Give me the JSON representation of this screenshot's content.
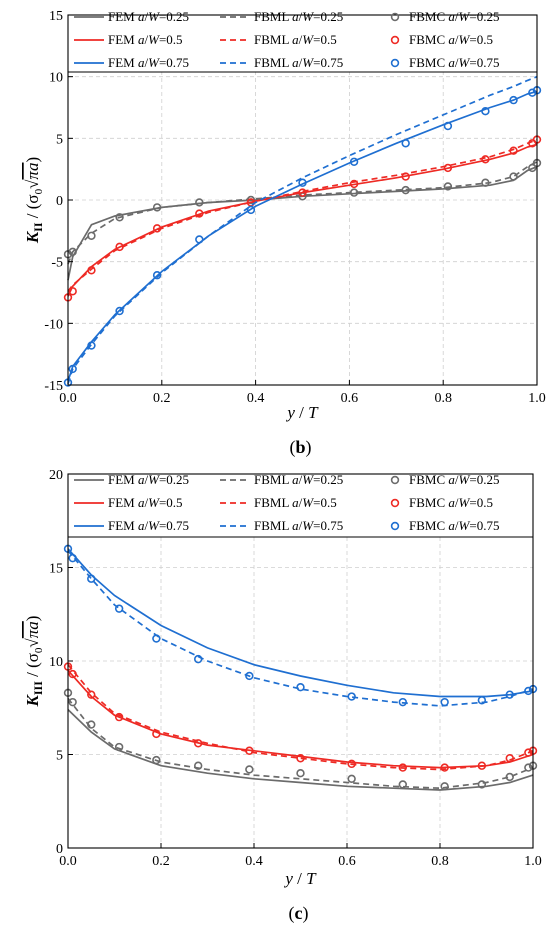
{
  "chart_data": [
    {
      "type": "line",
      "panel_label": "(b)",
      "xlabel": "y / T",
      "ylabel": "K_II / (σ0 √(πa))",
      "xlim": [
        0,
        1.0
      ],
      "ylim": [
        -15,
        15
      ],
      "xticks": [
        "0.0",
        "0.2",
        "0.4",
        "0.6",
        "0.8",
        "1.0"
      ],
      "yticks": [
        "-15",
        "-10",
        "-5",
        "0",
        "5",
        "10",
        "15"
      ],
      "grid": true,
      "legend_position": "top",
      "legend": [
        [
          "FEM a/W=0.25",
          "FBML a/W=0.25",
          "FBMC a/W=0.25"
        ],
        [
          "FEM a/W=0.5",
          "FBML a/W=0.5",
          "FBMC a/W=0.5"
        ],
        [
          "FEM a/W=0.75",
          "FBML a/W=0.75",
          "FBMC a/W=0.75"
        ]
      ],
      "series": [
        {
          "name": "FEM a/W=0.25",
          "style": "solid",
          "color": "#6b6b6b",
          "x": [
            0,
            0.01,
            0.05,
            0.1,
            0.2,
            0.3,
            0.4,
            0.5,
            0.6,
            0.7,
            0.8,
            0.9,
            0.95,
            0.98,
            1.0
          ],
          "y": [
            -6.5,
            -4.6,
            -2.0,
            -1.3,
            -0.6,
            -0.2,
            0.0,
            0.3,
            0.5,
            0.7,
            0.9,
            1.2,
            1.6,
            2.4,
            2.7
          ]
        },
        {
          "name": "FBML a/W=0.25",
          "style": "dashed",
          "color": "#6b6b6b",
          "x": [
            0,
            0.01,
            0.05,
            0.1,
            0.2,
            0.3,
            0.4,
            0.5,
            0.6,
            0.7,
            0.8,
            0.9,
            0.95,
            0.98,
            1.0
          ],
          "y": [
            -5.2,
            -4.2,
            -2.7,
            -1.5,
            -0.6,
            -0.2,
            0.1,
            0.4,
            0.6,
            0.8,
            1.0,
            1.4,
            1.9,
            2.7,
            3.1
          ]
        },
        {
          "name": "FBMC a/W=0.25",
          "style": "marker",
          "color": "#6b6b6b",
          "x": [
            0.0,
            0.01,
            0.05,
            0.11,
            0.19,
            0.28,
            0.39,
            0.5,
            0.61,
            0.72,
            0.81,
            0.89,
            0.95,
            0.99,
            1.0
          ],
          "y": [
            -4.4,
            -4.2,
            -2.9,
            -1.4,
            -0.6,
            -0.2,
            0.0,
            0.3,
            0.6,
            0.8,
            1.1,
            1.4,
            1.9,
            2.6,
            3.0
          ]
        },
        {
          "name": "FEM a/W=0.5",
          "style": "solid",
          "color": "#ee2a24",
          "x": [
            0,
            0.01,
            0.05,
            0.1,
            0.2,
            0.3,
            0.4,
            0.5,
            0.6,
            0.7,
            0.8,
            0.9,
            0.95,
            0.98,
            1.0
          ],
          "y": [
            -7.8,
            -7.0,
            -5.4,
            -4.0,
            -2.2,
            -0.9,
            -0.1,
            0.6,
            1.2,
            1.8,
            2.5,
            3.3,
            3.8,
            4.3,
            4.5
          ]
        },
        {
          "name": "FBML a/W=0.5",
          "style": "dashed",
          "color": "#ee2a24",
          "x": [
            0,
            0.01,
            0.05,
            0.1,
            0.2,
            0.3,
            0.4,
            0.5,
            0.6,
            0.7,
            0.8,
            0.9,
            0.95,
            0.98,
            1.0
          ],
          "y": [
            -7.4,
            -6.9,
            -5.6,
            -4.1,
            -2.3,
            -1.0,
            -0.1,
            0.7,
            1.4,
            2.0,
            2.7,
            3.5,
            4.1,
            4.6,
            4.9
          ]
        },
        {
          "name": "FBMC a/W=0.5",
          "style": "marker",
          "color": "#ee2a24",
          "x": [
            0.0,
            0.01,
            0.05,
            0.11,
            0.19,
            0.28,
            0.39,
            0.5,
            0.61,
            0.72,
            0.81,
            0.89,
            0.95,
            0.99,
            1.0
          ],
          "y": [
            -7.9,
            -7.4,
            -5.7,
            -3.8,
            -2.3,
            -1.1,
            -0.2,
            0.6,
            1.3,
            1.9,
            2.6,
            3.3,
            4.0,
            4.6,
            4.9
          ]
        },
        {
          "name": "FEM a/W=0.75",
          "style": "solid",
          "color": "#1f6fd1",
          "x": [
            0,
            0.01,
            0.05,
            0.1,
            0.2,
            0.3,
            0.4,
            0.5,
            0.6,
            0.7,
            0.8,
            0.9,
            0.95,
            0.98,
            1.0
          ],
          "y": [
            -14.7,
            -13.5,
            -11.5,
            -9.3,
            -5.8,
            -2.9,
            -0.5,
            1.3,
            3.0,
            4.6,
            6.1,
            7.5,
            8.1,
            8.6,
            8.8
          ]
        },
        {
          "name": "FBML a/W=0.75",
          "style": "dashed",
          "color": "#1f6fd1",
          "x": [
            0,
            0.01,
            0.05,
            0.1,
            0.2,
            0.3,
            0.4,
            0.5,
            0.6,
            0.7,
            0.8,
            0.9,
            0.95,
            0.98,
            1.0
          ],
          "y": [
            -14.9,
            -13.7,
            -11.7,
            -9.4,
            -5.9,
            -2.9,
            -0.2,
            1.8,
            3.6,
            5.3,
            6.9,
            8.5,
            9.2,
            9.7,
            10.0
          ]
        },
        {
          "name": "FBMC a/W=0.75",
          "style": "marker",
          "color": "#1f6fd1",
          "x": [
            0.0,
            0.01,
            0.05,
            0.11,
            0.19,
            0.28,
            0.39,
            0.5,
            0.61,
            0.72,
            0.81,
            0.89,
            0.95,
            0.99,
            1.0
          ],
          "y": [
            -14.8,
            -13.7,
            -11.8,
            -9.0,
            -6.1,
            -3.2,
            -0.8,
            1.4,
            3.1,
            4.6,
            6.0,
            7.2,
            8.1,
            8.7,
            8.9
          ]
        }
      ]
    },
    {
      "type": "line",
      "panel_label": "(c)",
      "xlabel": "y / T",
      "ylabel": "K_III / (σ0 √(πa))",
      "xlim": [
        0,
        1.0
      ],
      "ylim": [
        0,
        20
      ],
      "xticks": [
        "0.0",
        "0.2",
        "0.4",
        "0.6",
        "0.8",
        "1.0"
      ],
      "yticks": [
        "0",
        "5",
        "10",
        "15",
        "20"
      ],
      "grid": true,
      "legend_position": "top",
      "legend": [
        [
          "FEM a/W=0.25",
          "FBML a/W=0.25",
          "FBMC a/W=0.25"
        ],
        [
          "FEM a/W=0.5",
          "FBML a/W=0.5",
          "FBMC a/W=0.5"
        ],
        [
          "FEM a/W=0.75",
          "FBML a/W=0.75",
          "FBMC a/W=0.75"
        ]
      ],
      "series": [
        {
          "name": "FEM a/W=0.25",
          "style": "solid",
          "color": "#6b6b6b",
          "x": [
            0,
            0.05,
            0.1,
            0.2,
            0.3,
            0.4,
            0.5,
            0.6,
            0.7,
            0.8,
            0.9,
            0.95,
            1.0
          ],
          "y": [
            7.4,
            6.2,
            5.3,
            4.4,
            4.0,
            3.7,
            3.5,
            3.3,
            3.2,
            3.1,
            3.3,
            3.5,
            3.9
          ]
        },
        {
          "name": "FBML a/W=0.25",
          "style": "dashed",
          "color": "#6b6b6b",
          "x": [
            0,
            0.05,
            0.1,
            0.2,
            0.3,
            0.4,
            0.5,
            0.6,
            0.7,
            0.8,
            0.9,
            0.95,
            1.0
          ],
          "y": [
            8.0,
            6.4,
            5.4,
            4.6,
            4.2,
            3.9,
            3.7,
            3.5,
            3.3,
            3.2,
            3.5,
            3.8,
            4.3
          ]
        },
        {
          "name": "FBMC a/W=0.25",
          "style": "marker",
          "color": "#6b6b6b",
          "x": [
            0.0,
            0.01,
            0.05,
            0.11,
            0.19,
            0.28,
            0.39,
            0.5,
            0.61,
            0.72,
            0.81,
            0.89,
            0.95,
            0.99,
            1.0
          ],
          "y": [
            8.3,
            7.8,
            6.6,
            5.4,
            4.7,
            4.4,
            4.2,
            4.0,
            3.7,
            3.4,
            3.3,
            3.4,
            3.8,
            4.3,
            4.4
          ]
        },
        {
          "name": "FEM a/W=0.5",
          "style": "solid",
          "color": "#ee2a24",
          "x": [
            0,
            0.05,
            0.1,
            0.2,
            0.3,
            0.4,
            0.5,
            0.6,
            0.7,
            0.8,
            0.9,
            0.95,
            1.0
          ],
          "y": [
            9.5,
            8.1,
            7.1,
            6.1,
            5.5,
            5.2,
            4.9,
            4.6,
            4.4,
            4.3,
            4.4,
            4.6,
            5.0
          ]
        },
        {
          "name": "FBML a/W=0.5",
          "style": "dashed",
          "color": "#ee2a24",
          "x": [
            0,
            0.05,
            0.1,
            0.2,
            0.3,
            0.4,
            0.5,
            0.6,
            0.7,
            0.8,
            0.9,
            0.95,
            1.0
          ],
          "y": [
            9.8,
            8.3,
            7.2,
            6.2,
            5.6,
            5.1,
            4.8,
            4.5,
            4.3,
            4.2,
            4.4,
            4.7,
            5.2
          ]
        },
        {
          "name": "FBMC a/W=0.5",
          "style": "marker",
          "color": "#ee2a24",
          "x": [
            0.0,
            0.01,
            0.05,
            0.11,
            0.19,
            0.28,
            0.39,
            0.5,
            0.61,
            0.72,
            0.81,
            0.89,
            0.95,
            0.99,
            1.0
          ],
          "y": [
            9.7,
            9.3,
            8.2,
            7.0,
            6.1,
            5.6,
            5.2,
            4.8,
            4.5,
            4.3,
            4.3,
            4.4,
            4.8,
            5.1,
            5.2
          ]
        },
        {
          "name": "FEM a/W=0.75",
          "style": "solid",
          "color": "#1f6fd1",
          "x": [
            0,
            0.05,
            0.1,
            0.2,
            0.3,
            0.4,
            0.5,
            0.6,
            0.7,
            0.8,
            0.9,
            0.95,
            1.0
          ],
          "y": [
            16.0,
            14.6,
            13.5,
            11.9,
            10.7,
            9.8,
            9.2,
            8.7,
            8.3,
            8.1,
            8.1,
            8.2,
            8.4
          ]
        },
        {
          "name": "FBML a/W=0.75",
          "style": "dashed",
          "color": "#1f6fd1",
          "x": [
            0,
            0.05,
            0.1,
            0.2,
            0.3,
            0.4,
            0.5,
            0.6,
            0.7,
            0.8,
            0.9,
            0.95,
            1.0
          ],
          "y": [
            15.9,
            14.4,
            13.0,
            11.2,
            10.0,
            9.1,
            8.5,
            8.1,
            7.8,
            7.6,
            7.8,
            8.1,
            8.5
          ]
        },
        {
          "name": "FBMC a/W=0.75",
          "style": "marker",
          "color": "#1f6fd1",
          "x": [
            0.0,
            0.01,
            0.05,
            0.11,
            0.19,
            0.28,
            0.39,
            0.5,
            0.61,
            0.72,
            0.81,
            0.89,
            0.95,
            0.99,
            1.0
          ],
          "y": [
            16.0,
            15.5,
            14.4,
            12.8,
            11.2,
            10.1,
            9.2,
            8.6,
            8.1,
            7.8,
            7.8,
            7.9,
            8.2,
            8.4,
            8.5
          ]
        }
      ]
    }
  ]
}
